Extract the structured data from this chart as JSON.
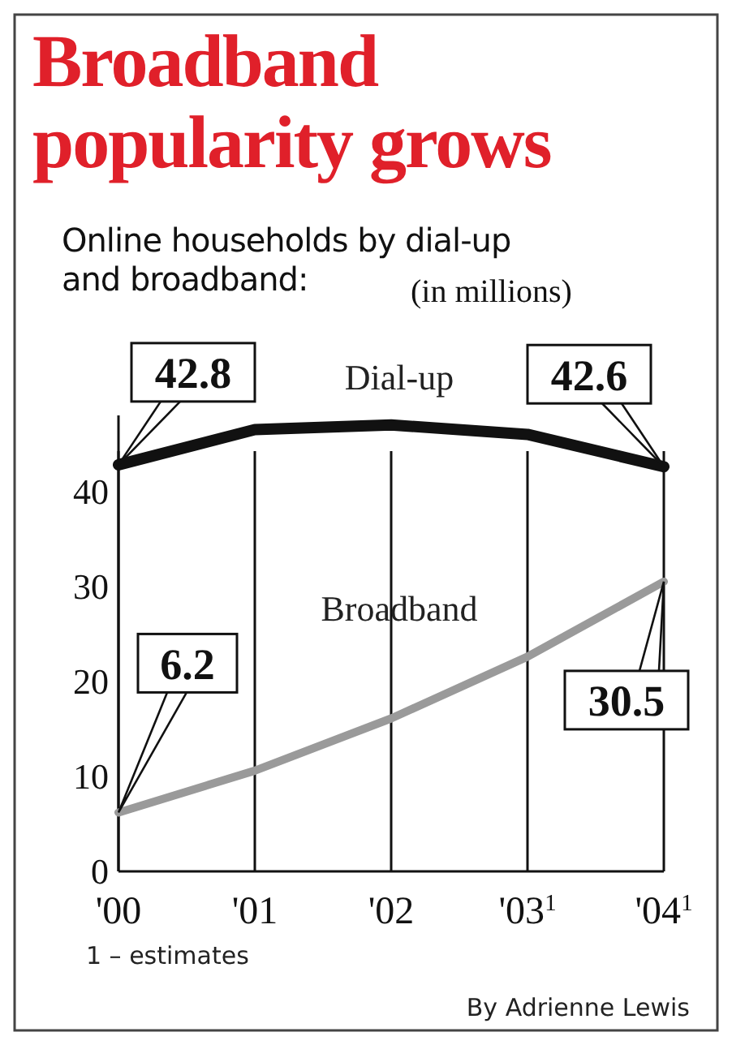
{
  "chart_data": {
    "type": "line",
    "title": "Broadband popularity grows",
    "subtitle": "Online households by dial-up and broadband:",
    "ylabel": "(in millions)",
    "categories": [
      "'00",
      "'01",
      "'02",
      "'03$^{1}$",
      "'04$^{1}$"
    ],
    "series": [
      {
        "name": "Dial-up",
        "color": "#111111",
        "values": [
          42.8,
          46.5,
          47.0,
          46.0,
          42.6
        ],
        "value_labels": [
          "42.8",
          null,
          null,
          null,
          "42.6"
        ]
      },
      {
        "name": "Broadband",
        "color": "#9a9a9a",
        "values": [
          6.2,
          10.6,
          16.1,
          22.6,
          30.5
        ],
        "value_labels": [
          "6.2",
          null,
          null,
          null,
          "30.5"
        ]
      }
    ],
    "ylim": [
      0,
      48
    ],
    "yticks": [
      0,
      10,
      20,
      30,
      40
    ],
    "grid": "x",
    "marker": "none",
    "line_style": "solid",
    "annotations": [
      "1 – estimates",
      "By Adrienne Lewis"
    ]
  }
}
